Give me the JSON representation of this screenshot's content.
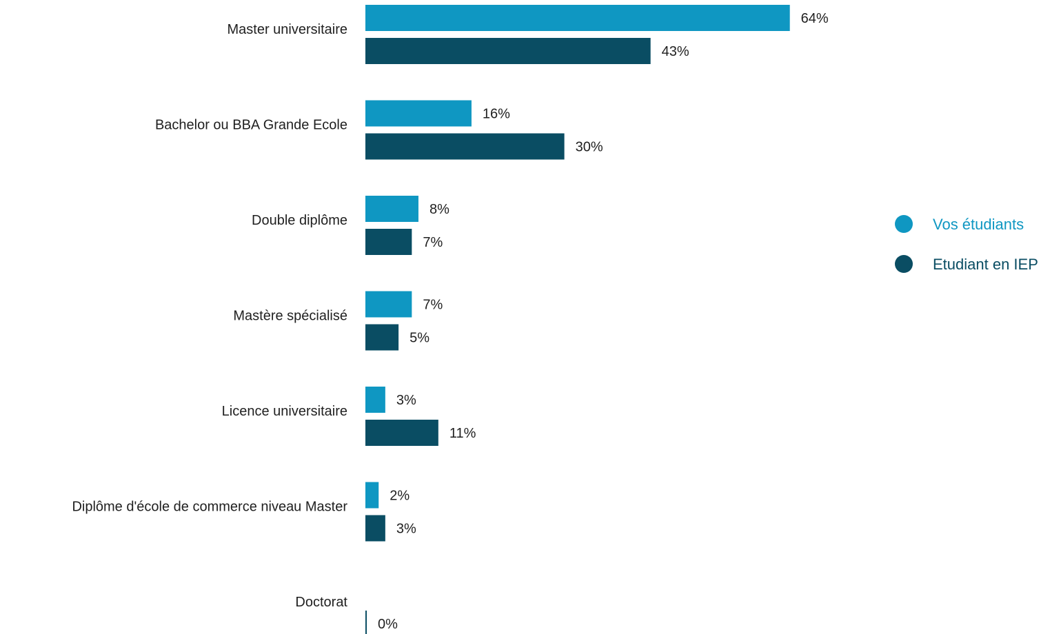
{
  "chart_data": {
    "type": "bar",
    "orientation": "horizontal",
    "categories": [
      "Master universitaire",
      "Bachelor ou BBA Grande Ecole",
      "Double diplôme",
      "Mastère spécialisé",
      "Licence universitaire",
      "Diplôme d'école de commerce niveau Master",
      "Doctorat"
    ],
    "series": [
      {
        "name": "Vos étudiants",
        "color": "#0f97c2",
        "values": [
          64,
          16,
          8,
          7,
          3,
          2,
          null
        ],
        "labels": [
          "64%",
          "16%",
          "8%",
          "7%",
          "3%",
          "2%",
          null
        ]
      },
      {
        "name": "Etudiant en IEP",
        "color": "#0a4d63",
        "values": [
          43,
          30,
          7,
          5,
          11,
          3,
          0
        ],
        "labels": [
          "43%",
          "30%",
          "7%",
          "5%",
          "11%",
          "3%",
          "0%"
        ]
      }
    ],
    "xlim": [
      0,
      100
    ],
    "grid": false,
    "legend_position": "right",
    "title": "",
    "xlabel": "",
    "ylabel": ""
  }
}
